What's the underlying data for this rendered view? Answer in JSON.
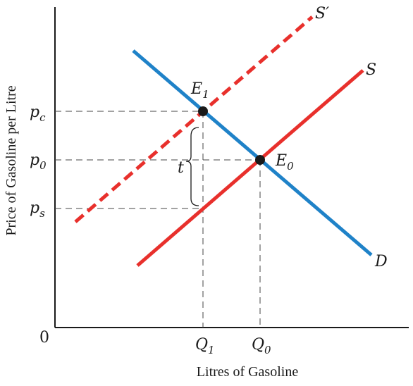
{
  "axes": {
    "y_title": "Price of Gasoline per Litre",
    "x_title": "Litres of Gasoline",
    "origin": "0"
  },
  "price_labels": {
    "pc": {
      "base": "p",
      "sub": "c"
    },
    "p0": {
      "base": "p",
      "sub": "0"
    },
    "ps": {
      "base": "p",
      "sub": "s"
    }
  },
  "quantity_labels": {
    "q1": {
      "base": "Q",
      "sub": "1"
    },
    "q0": {
      "base": "Q",
      "sub": "0"
    }
  },
  "curves": {
    "supply_after_tax": {
      "label": "S′",
      "color": "#e8302c",
      "style": "dashed"
    },
    "supply": {
      "label": "S",
      "color": "#e8302c",
      "style": "solid"
    },
    "demand": {
      "label": "D",
      "color": "#1f82c8",
      "style": "solid"
    }
  },
  "points": {
    "e1": {
      "base": "E",
      "sub": "1"
    },
    "e0": {
      "base": "E",
      "sub": "0"
    }
  },
  "tax_label": "t",
  "colors": {
    "axis": "#1a1a1a",
    "guide": "#444444",
    "point": "#1a1a1a"
  }
}
